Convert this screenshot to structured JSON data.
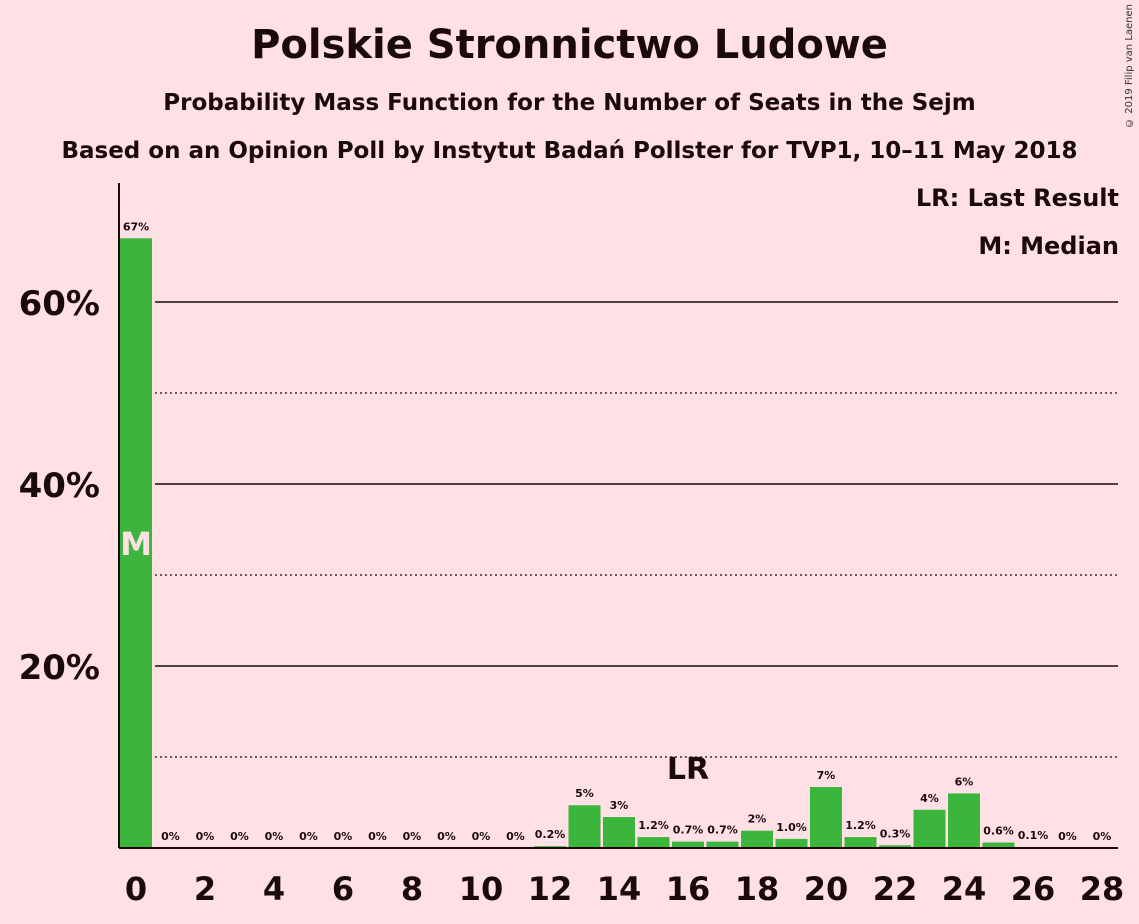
{
  "chart_data": {
    "type": "bar",
    "title": "Polskie Stronnictwo Ludowe",
    "subtitle": "Probability Mass Function for the Number of Seats in the Sejm",
    "subtitle2": "Based on an Opinion Poll by Instytut Badań Pollster for TVP1, 10–11 May 2018",
    "copyright": "© 2019 Filip van Laenen",
    "legend": {
      "last_result": "LR: Last Result",
      "median": "M: Median"
    },
    "categories": [
      0,
      1,
      2,
      3,
      4,
      5,
      6,
      7,
      8,
      9,
      10,
      11,
      12,
      13,
      14,
      15,
      16,
      17,
      18,
      19,
      20,
      21,
      22,
      23,
      24,
      25,
      26,
      27,
      28
    ],
    "values": [
      67,
      0,
      0,
      0,
      0,
      0,
      0,
      0,
      0,
      0,
      0,
      0,
      0.2,
      4.7,
      3.4,
      1.2,
      0.7,
      0.7,
      1.9,
      1.0,
      6.7,
      1.2,
      0.3,
      4.2,
      6.0,
      0.6,
      0.1,
      0,
      0
    ],
    "labels": [
      "67%",
      "0%",
      "0%",
      "0%",
      "0%",
      "0%",
      "0%",
      "0%",
      "0%",
      "0%",
      "0%",
      "0%",
      "0.2%",
      "5%",
      "3%",
      "1.2%",
      "0.7%",
      "0.7%",
      "2%",
      "1.0%",
      "7%",
      "1.2%",
      "0.3%",
      "4%",
      "6%",
      "0.6%",
      "0.1%",
      "0%",
      "0%"
    ],
    "x_tick_labels": [
      "0",
      "2",
      "4",
      "6",
      "8",
      "10",
      "12",
      "14",
      "16",
      "18",
      "20",
      "22",
      "24",
      "26",
      "28"
    ],
    "y_tick_labels": [
      "20%",
      "40%",
      "60%"
    ],
    "ylim": [
      0,
      73
    ],
    "median_seat": 0,
    "median_marker": "M",
    "last_result_seat": 16,
    "last_result_marker": "LR",
    "bar_color": "#3cb53c"
  }
}
